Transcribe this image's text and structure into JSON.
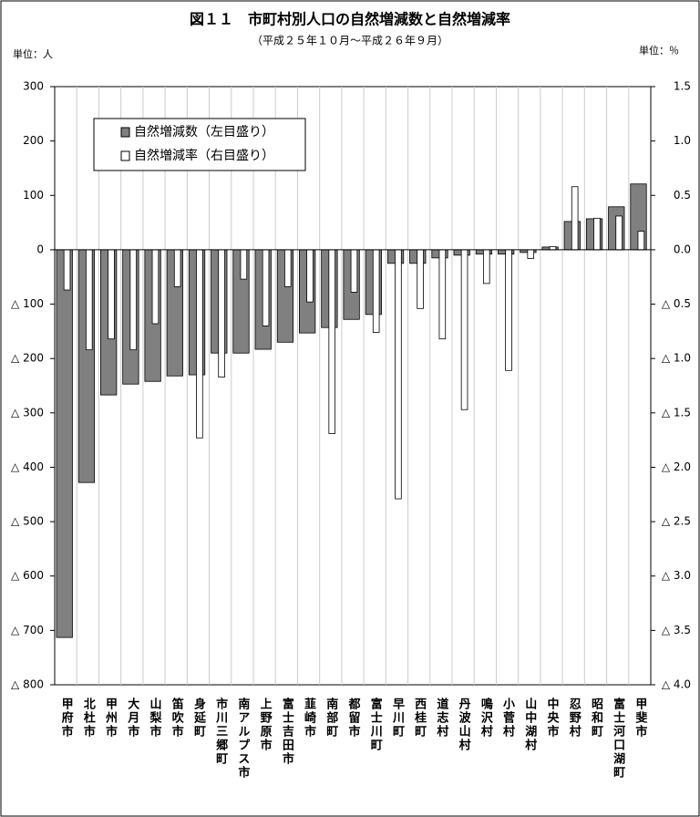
{
  "chart_data": {
    "type": "bar",
    "title": "図１１　市町村別人口の自然増減数と自然増減率",
    "subtitle": "（平成２５年１０月～平成２６年９月）",
    "y_unit": "単位：人",
    "y2_unit": "単位：％",
    "categories": [
      "甲府市",
      "北杜市",
      "甲州市",
      "大月市",
      "山梨市",
      "笛吹市",
      "身延町",
      "市川三郷町",
      "南アルプス市",
      "上野原市",
      "富士吉田市",
      "韮崎市",
      "南部町",
      "都留市",
      "富士川町",
      "早川町",
      "西桂町",
      "道志村",
      "丹波山村",
      "鳴沢村",
      "小菅村",
      "山中湖村",
      "中央市",
      "忍野村",
      "昭和町",
      "富士河口湖町",
      "甲斐市"
    ],
    "series": [
      {
        "name": "自然増減数（左目盛り）",
        "color": "#808080",
        "axis": "y",
        "values": [
          -713,
          -428,
          -267,
          -247,
          -242,
          -232,
          -230,
          -190,
          -190,
          -183,
          -170,
          -153,
          -143,
          -128,
          -119,
          -25,
          -25,
          -15,
          -10,
          -8,
          -8,
          -5,
          5,
          52,
          57,
          79,
          121
        ]
      },
      {
        "name": "自然増減率（右目盛り）",
        "color": "#ffffff",
        "axis": "y2",
        "values": [
          -0.37,
          -0.92,
          -0.82,
          -0.92,
          -0.68,
          -0.34,
          -1.73,
          -1.17,
          -0.27,
          -0.7,
          -0.34,
          -0.48,
          -1.69,
          -0.39,
          -0.76,
          -2.29,
          -0.54,
          -0.82,
          -1.47,
          -0.31,
          -1.11,
          -0.08,
          0.03,
          0.58,
          0.29,
          0.31,
          0.17
        ]
      }
    ],
    "ylim": [
      -800,
      300
    ],
    "yticks": [
      300,
      200,
      100,
      0,
      {
        "value": -100,
        "label": "△ 100"
      },
      {
        "value": -200,
        "label": "△ 200"
      },
      {
        "value": -300,
        "label": "△ 300"
      },
      {
        "value": -400,
        "label": "△ 400"
      },
      {
        "value": -500,
        "label": "△ 500"
      },
      {
        "value": -600,
        "label": "△ 600"
      },
      {
        "value": -700,
        "label": "△ 700"
      },
      {
        "value": -800,
        "label": "△ 800"
      }
    ],
    "y2lim": [
      -4.0,
      1.5
    ],
    "y2ticks": [
      {
        "value": 1.5,
        "label": "1.5"
      },
      {
        "value": 1,
        "label": "1.0"
      },
      {
        "value": 0.5,
        "label": "0.5"
      },
      {
        "value": 0,
        "label": "0.0"
      },
      {
        "value": -0.5,
        "label": "△ 0.5"
      },
      {
        "value": -1,
        "label": "△ 1.0"
      },
      {
        "value": -1.5,
        "label": "△ 1.5"
      },
      {
        "value": -2,
        "label": "△ 2.0"
      },
      {
        "value": -2.5,
        "label": "△ 2.5"
      },
      {
        "value": -3,
        "label": "△ 3.0"
      },
      {
        "value": -3.5,
        "label": "△ 3.5"
      },
      {
        "value": -4,
        "label": "△ 4.0"
      }
    ]
  }
}
